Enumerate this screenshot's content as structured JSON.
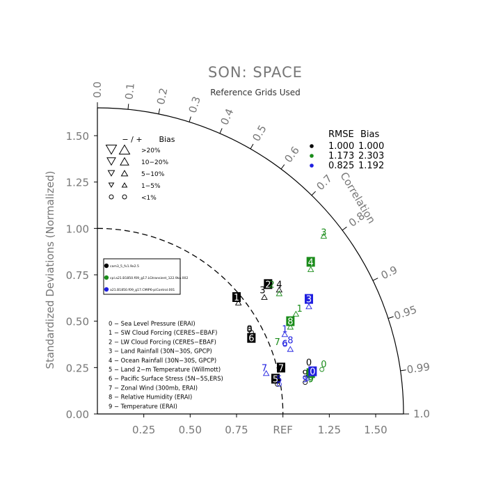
{
  "chart_data": {
    "type": "scatter",
    "title": "SON: SPACE",
    "subtitle": "Reference Grids Used",
    "ylabel": "Standardized Deviations (Normalized)",
    "arc_label": "Correlation",
    "ref_label": "REF",
    "xlim": [
      0,
      1.65
    ],
    "ylim": [
      0,
      1.65
    ],
    "x_tick_labels": [
      "0.25",
      "0.50",
      "0.75",
      "REF",
      "1.25",
      "1.50"
    ],
    "x_tick_values": [
      0.25,
      0.5,
      0.75,
      1.0,
      1.25,
      1.5
    ],
    "y_tick_labels": [
      "0.00",
      "0.25",
      "0.50",
      "0.75",
      "1.00",
      "1.25",
      "1.50"
    ],
    "y_tick_values": [
      0.0,
      0.25,
      0.5,
      0.75,
      1.0,
      1.25,
      1.5
    ],
    "correlation_ticks": [
      "0.0",
      "0.1",
      "0.2",
      "0.3",
      "0.4",
      "0.5",
      "0.6",
      "0.7",
      "0.8",
      "0.9",
      "0.95",
      "0.99",
      "1.0"
    ],
    "correlation_values": [
      0.0,
      0.1,
      0.2,
      0.3,
      0.4,
      0.5,
      0.6,
      0.7,
      0.8,
      0.9,
      0.95,
      0.99,
      1.0
    ],
    "bias_legend": {
      "header_minus_plus": "− / +",
      "header_bias": "Bias",
      "rows": [
        ">20%",
        "10−20%",
        "5−10%",
        "1−5%",
        "<1%"
      ],
      "marker_sizes": [
        15,
        12,
        9,
        7,
        5
      ]
    },
    "rmse_table": {
      "header_rmse": "RMSE",
      "header_bias": "Bias",
      "rows": [
        {
          "color": "#000000",
          "rmse": "1.000",
          "bias": "1.000"
        },
        {
          "color": "#1a8c1a",
          "rmse": "1.173",
          "bias": "2.303"
        },
        {
          "color": "#1f1fe0",
          "rmse": "0.825",
          "bias": "1.192"
        }
      ]
    },
    "case_legend": [
      {
        "color": "#000000",
        "name": "cam3_5_fv1.9x2.5"
      },
      {
        "color": "#1a8c1a",
        "name": "cpl.a21.B1850.f09_g17.LGtransient_122.9ka.002"
      },
      {
        "color": "#1f1fe0",
        "name": "a21.B1850.f09_g17.CMIP6-piControl.001"
      }
    ],
    "variables": [
      "0 − Sea Level Pressure (ERAI)",
      "1 − SW Cloud Forcing (CERES−EBAF)",
      "2 − LW Cloud Forcing (CERES−EBAF)",
      "3 − Land Rainfall (30N−30S, GPCP)",
      "4 − Ocean Rainfall (30N−30S, GPCP)",
      "5 − Land 2−m Temperature (Willmott)",
      "6 − Pacific Surface Stress (5N−5S,ERS)",
      "7 − Zonal Wind (300mb, ERAI)",
      "8 − Relative Humidity (ERAI)",
      "9 − Temperature (ERAI)"
    ],
    "series": [
      {
        "name": "cam3_5_fv1.9x2.5",
        "color": "#000000",
        "points": [
          {
            "label": "1",
            "x": 0.75,
            "y": 0.63,
            "boxed": true,
            "marker": "up",
            "mx": 0.76,
            "my": 0.6
          },
          {
            "label": "2",
            "x": 0.92,
            "y": 0.7,
            "boxed": true,
            "marker": "up",
            "mx": 0.9,
            "my": 0.63
          },
          {
            "label": "3",
            "x": 0.89,
            "y": 0.67,
            "boxed": false,
            "marker": "none",
            "mx": 0.89,
            "my": 0.67
          },
          {
            "label": "4",
            "x": 0.98,
            "y": 0.7,
            "boxed": false,
            "marker": "up",
            "mx": 0.98,
            "my": 0.67
          },
          {
            "label": "6",
            "x": 0.83,
            "y": 0.41,
            "boxed": true,
            "marker": "circle",
            "mx": 0.83,
            "my": 0.44
          },
          {
            "label": "8",
            "x": 0.82,
            "y": 0.46,
            "boxed": false,
            "marker": "circle",
            "mx": 0.82,
            "my": 0.46
          },
          {
            "label": "7",
            "x": 0.99,
            "y": 0.25,
            "boxed": true,
            "marker": "none",
            "mx": 0.99,
            "my": 0.25
          },
          {
            "label": "5",
            "x": 0.96,
            "y": 0.19,
            "boxed": true,
            "marker": "circle",
            "mx": 0.97,
            "my": 0.16
          },
          {
            "label": "0",
            "x": 1.14,
            "y": 0.28,
            "boxed": false,
            "marker": "circle",
            "mx": 1.14,
            "my": 0.23
          },
          {
            "label": "9",
            "x": 1.12,
            "y": 0.22,
            "boxed": false,
            "marker": "circle",
            "mx": 1.12,
            "my": 0.17
          }
        ]
      },
      {
        "name": "cpl.a21.B1850.f09_g17.LGtransient_122.9ka.002",
        "color": "#1a8c1a",
        "points": [
          {
            "label": "3",
            "x": 1.22,
            "y": 0.98,
            "boxed": false,
            "marker": "up",
            "mx": 1.22,
            "my": 0.96
          },
          {
            "label": "4",
            "x": 1.15,
            "y": 0.82,
            "boxed": true,
            "marker": "up",
            "mx": 1.15,
            "my": 0.78
          },
          {
            "label": "2",
            "x": 0.94,
            "y": 0.7,
            "boxed": false,
            "marker": "up",
            "mx": 0.98,
            "my": 0.65
          },
          {
            "label": "1",
            "x": 1.09,
            "y": 0.57,
            "boxed": false,
            "marker": "up",
            "mx": 1.07,
            "my": 0.54
          },
          {
            "label": "8",
            "x": 1.04,
            "y": 0.5,
            "boxed": true,
            "marker": "up",
            "mx": 1.04,
            "my": 0.47
          },
          {
            "label": "7",
            "x": 0.97,
            "y": 0.39,
            "boxed": false,
            "marker": "none",
            "mx": 0.97,
            "my": 0.39
          },
          {
            "label": "0",
            "x": 1.22,
            "y": 0.27,
            "boxed": false,
            "marker": "circle",
            "mx": 1.21,
            "my": 0.24
          },
          {
            "label": "6",
            "x": 1.15,
            "y": 0.22,
            "boxed": true,
            "marker": "none",
            "mx": 1.15,
            "my": 0.22
          },
          {
            "label": "9",
            "x": 1.15,
            "y": 0.19,
            "boxed": false,
            "marker": "circle",
            "mx": 1.15,
            "my": 0.19
          }
        ]
      },
      {
        "name": "a21.B1850.f09_g17.CMIP6-piControl.001",
        "color": "#1f1fe0",
        "points": [
          {
            "label": "3",
            "x": 1.14,
            "y": 0.62,
            "boxed": true,
            "marker": "up",
            "mx": 1.14,
            "my": 0.58
          },
          {
            "label": "1",
            "x": 1.01,
            "y": 0.46,
            "boxed": false,
            "marker": "up",
            "mx": 1.01,
            "my": 0.43
          },
          {
            "label": "8",
            "x": 1.04,
            "y": 0.4,
            "boxed": false,
            "marker": "up",
            "mx": 1.04,
            "my": 0.35
          },
          {
            "label": "6",
            "x": 1.01,
            "y": 0.38,
            "boxed": false,
            "marker": "circle",
            "mx": 1.01,
            "my": 0.38
          },
          {
            "label": "7",
            "x": 0.9,
            "y": 0.25,
            "boxed": false,
            "marker": "up",
            "mx": 0.91,
            "my": 0.22
          },
          {
            "label": "0",
            "x": 1.16,
            "y": 0.23,
            "boxed": true,
            "marker": "none",
            "mx": 1.16,
            "my": 0.23
          },
          {
            "label": "9",
            "x": 1.12,
            "y": 0.19,
            "boxed": false,
            "marker": "circle",
            "mx": 1.13,
            "my": 0.19
          },
          {
            "label": "5",
            "x": 0.98,
            "y": 0.19,
            "boxed": false,
            "marker": "circle",
            "mx": 0.98,
            "my": 0.16
          }
        ]
      }
    ]
  }
}
